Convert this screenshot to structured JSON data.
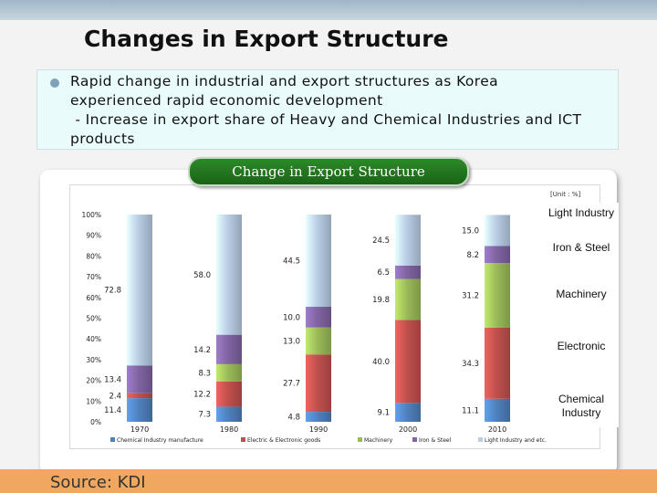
{
  "header": {
    "title": "Changes in Export Structure"
  },
  "bullet": {
    "line1": "Rapid change in industrial and export structures as Korea",
    "line2": "experienced rapid economic development",
    "line3": " - Increase in export share of Heavy and Chemical Industries and ICT",
    "line4": "products"
  },
  "panel": {
    "pill_label": "Change in Export Structure",
    "unit": "[Unit : %]"
  },
  "right_labels": {
    "light": "Light Industry",
    "iron": "Iron & Steel",
    "machinery": "Machinery",
    "electronic": "Electronic",
    "chemical": "Chemical Industry"
  },
  "footer": {
    "source": "Source: KDI"
  },
  "chart_data": {
    "type": "bar",
    "stacked": true,
    "categories": [
      "1970",
      "1980",
      "1990",
      "2000",
      "2010"
    ],
    "ylim": [
      0,
      100
    ],
    "yticks": [
      "0%",
      "10%",
      "20%",
      "30%",
      "40%",
      "50%",
      "60%",
      "70%",
      "80%",
      "90%",
      "100%"
    ],
    "series": [
      {
        "name": "Chemical Industry manufacture",
        "color": "#4f81bd",
        "values": [
          11.4,
          7.3,
          4.8,
          9.1,
          11.1
        ]
      },
      {
        "name": "Electric & Electronic goods",
        "color": "#c0504d",
        "values": [
          2.4,
          12.2,
          27.7,
          40.0,
          34.3
        ]
      },
      {
        "name": "Machinery",
        "color": "#9bbb59",
        "values": [
          null,
          8.3,
          13.0,
          19.8,
          31.2
        ]
      },
      {
        "name": "Iron & Steel",
        "color": "#8064a2",
        "values": [
          13.4,
          14.2,
          10.0,
          6.5,
          8.2
        ]
      },
      {
        "name": "Light Industry and etc.",
        "color": "#b9cde5",
        "values": [
          72.8,
          58.0,
          44.5,
          24.5,
          15.0
        ]
      }
    ],
    "grid": false,
    "legend_position": "bottom"
  }
}
